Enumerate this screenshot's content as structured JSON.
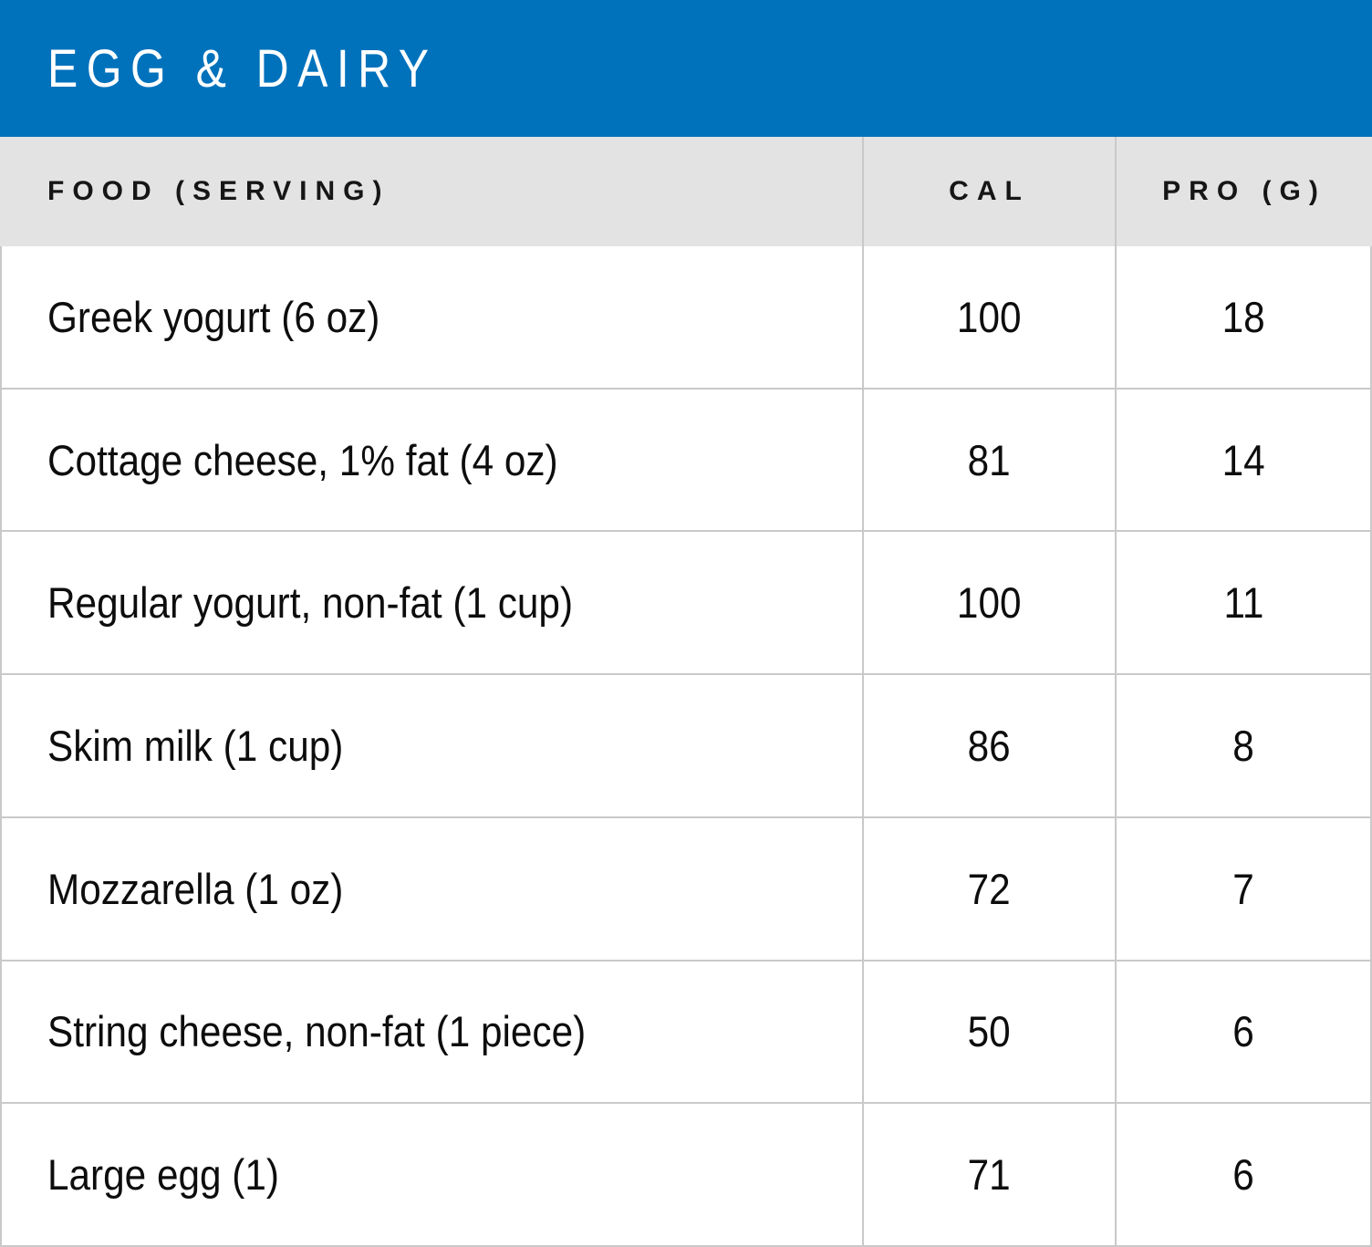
{
  "chart_data": {
    "type": "table",
    "title": "EGG & DAIRY",
    "columns": [
      "FOOD (SERVING)",
      "CAL",
      "PRO (G)"
    ],
    "rows": [
      [
        "Greek yogurt (6 oz)",
        100,
        18
      ],
      [
        "Cottage cheese, 1% fat (4 oz)",
        81,
        14
      ],
      [
        "Regular yogurt, non-fat (1 cup)",
        100,
        11
      ],
      [
        "Skim milk (1 cup)",
        86,
        8
      ],
      [
        "Mozzarella (1 oz)",
        72,
        7
      ],
      [
        "String cheese, non-fat (1 piece)",
        50,
        6
      ],
      [
        "Large egg (1)",
        71,
        6
      ]
    ]
  },
  "header": {
    "title": "EGG & DAIRY"
  },
  "table": {
    "columns": [
      {
        "key": "food",
        "label": "FOOD (SERVING)"
      },
      {
        "key": "cal",
        "label": "CAL"
      },
      {
        "key": "pro",
        "label": "PRO (G)"
      }
    ],
    "rows": [
      {
        "food": "Greek yogurt (6 oz)",
        "cal": "100",
        "pro": "18"
      },
      {
        "food": "Cottage cheese, 1% fat (4 oz)",
        "cal": "81",
        "pro": "14"
      },
      {
        "food": "Regular yogurt, non-fat (1 cup)",
        "cal": "100",
        "pro": "11"
      },
      {
        "food": "Skim milk (1 cup)",
        "cal": "86",
        "pro": "8"
      },
      {
        "food": "Mozzarella (1 oz)",
        "cal": "72",
        "pro": "7"
      },
      {
        "food": "String cheese, non-fat (1 piece)",
        "cal": "50",
        "pro": "6"
      },
      {
        "food": "Large egg (1)",
        "cal": "71",
        "pro": "6"
      }
    ]
  },
  "colors": {
    "accent": "#0072bc",
    "column_header_bg": "#e3e3e3",
    "border": "#c9c9c9",
    "text": "#0d0d0d",
    "title_text": "#ffffff"
  }
}
